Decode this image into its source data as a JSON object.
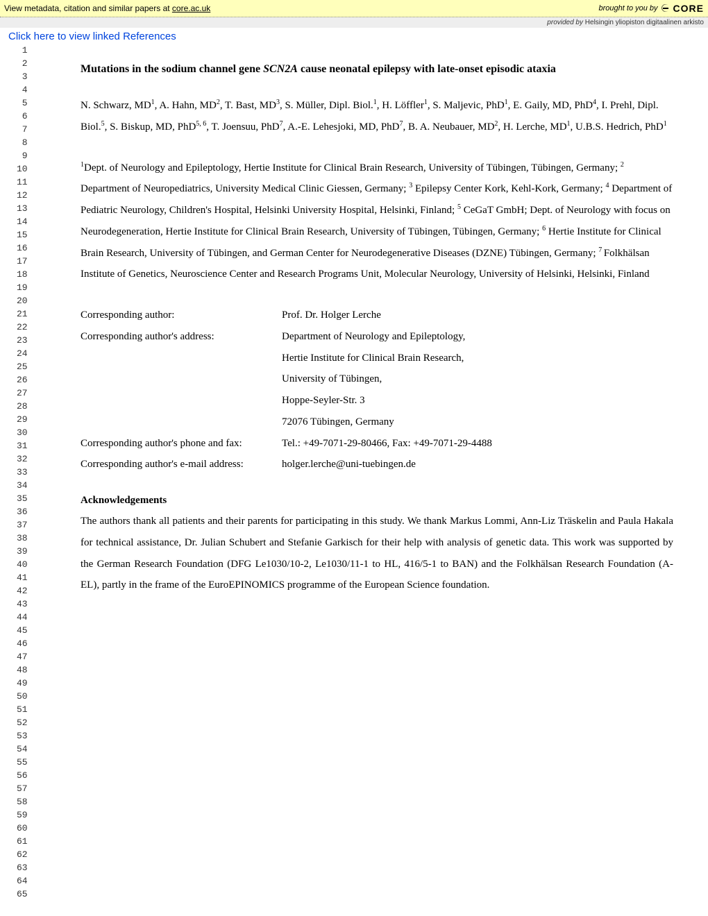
{
  "topbar": {
    "metadata_text_prefix": "View metadata, citation and similar papers at ",
    "metadata_link": "core.ac.uk",
    "brought_prefix": "brought to you by ",
    "core_label": "CORE"
  },
  "provider_bar": {
    "prefix": "provided by ",
    "source": "Helsingin yliopiston digitaalinen arkisto"
  },
  "linked_refs": "Click here to view linked References",
  "line_number_start": 1,
  "line_number_end": 65,
  "title_pre": "Mutations in the sodium channel gene ",
  "title_gene": "SCN2A",
  "title_post": " cause neonatal epilepsy with late-onset episodic ataxia",
  "authors_html": "N. Schwarz, MD<sup>1</sup>, A. Hahn, MD<sup>2</sup>, T. Bast, MD<sup>3</sup>, S. Müller, Dipl. Biol.<sup>1</sup>, H. Löffler<sup>1</sup>, S. Maljevic, PhD<sup>1</sup>, E. Gaily, MD, PhD<sup>4</sup>, I. Prehl, Dipl. Biol.<sup>5</sup>, S. Biskup, MD, PhD<sup>5, 6</sup>, T. Joensuu, PhD<sup>7</sup>, A.-E. Lehesjoki, MD, PhD<sup>7</sup>, B. A. Neubauer, MD<sup>2</sup>, H. Lerche, MD<sup>1</sup>, U.B.S. Hedrich, PhD<sup>1</sup>",
  "affiliations_html": "<sup>1</sup>Dept. of Neurology and Epileptology, Hertie Institute for Clinical Brain Research, University of Tübingen, Tübingen, Germany; <sup>2</sup> Department of Neuropediatrics, University Medical Clinic Giessen, Germany; <sup>3</sup> Epilepsy Center Kork, Kehl-Kork, Germany; <sup>4</sup> Department of Pediatric Neurology, Children's Hospital, Helsinki University Hospital, Helsinki, Finland; <sup>5</sup> CeGaT GmbH; Dept. of Neurology with focus on Neurodegeneration, Hertie Institute for Clinical Brain Research, University of Tübingen, Tübingen, Germany; <sup>6</sup> Hertie Institute for Clinical Brain Research, University of Tübingen, and German Center for Neurodegenerative Diseases (DZNE) Tübingen, Germany; <sup>7 </sup>Folkhälsan Institute of Genetics, Neuroscience Center and Research Programs Unit, Molecular Neurology, University of Helsinki, Helsinki, Finland",
  "corresponding": {
    "rows": [
      {
        "label": "Corresponding author:",
        "value": "Prof. Dr. Holger Lerche"
      },
      {
        "label": "Corresponding author's address:",
        "value": "Department of Neurology and Epileptology,"
      },
      {
        "label": "",
        "value": "Hertie Institute for Clinical Brain Research,"
      },
      {
        "label": "",
        "value": "University of Tübingen,"
      },
      {
        "label": "",
        "value": "Hoppe-Seyler-Str. 3"
      },
      {
        "label": "",
        "value": "72076 Tübingen, Germany"
      },
      {
        "label": "Corresponding author's phone and fax:",
        "value": "Tel.: +49-7071-29-80466, Fax: +49-7071-29-4488"
      },
      {
        "label": "Corresponding author's e-mail address:",
        "value": "holger.lerche@uni-tuebingen.de"
      }
    ]
  },
  "ack": {
    "heading": "Acknowledgements",
    "body": "The authors thank all patients and their parents for participating in this study. We thank Markus Lommi, Ann-Liz Träskelin and Paula Hakala for technical assistance, Dr. Julian Schubert and Stefanie Garkisch for their help with analysis of genetic data. This work was supported by the German Research Foundation (DFG Le1030/10-2, Le1030/11-1 to HL, 416/5-1 to BAN) and the Folkhälsan Research Foundation (A-EL), partly in the frame of the EuroEPINOMICS programme of the European Science foundation."
  },
  "colors": {
    "topbar_bg": "#ffffbb",
    "provider_bg": "#eeeeee",
    "link_blue": "#0044dd"
  }
}
